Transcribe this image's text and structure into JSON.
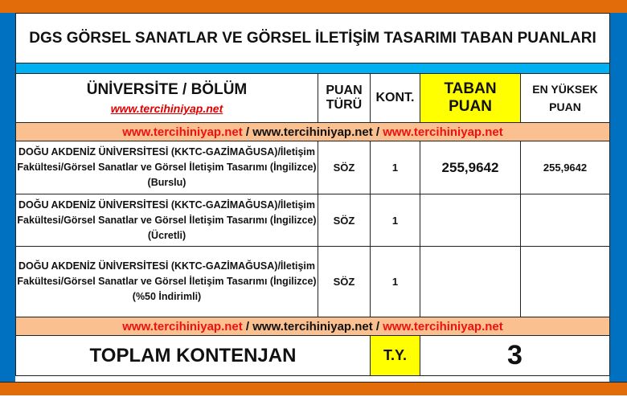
{
  "title": "DGS GÖRSEL SANATLAR VE GÖRSEL İLETİŞİM TASARIMI TABAN PUANLARI",
  "header": {
    "university": "ÜNİVERSİTE / BÖLÜM",
    "site": "www.tercihiniyap.net",
    "puan_turu_1": "PUAN",
    "puan_turu_2": "TÜRÜ",
    "kont": "KONT.",
    "taban_1": "TABAN",
    "taban_2": "PUAN",
    "enyuksek_1": "EN YÜKSEK",
    "enyuksek_2": "PUAN"
  },
  "link_row": {
    "link": "www.tercihiniyap.net",
    "sep": " / "
  },
  "rows": [
    {
      "name": "DOĞU AKDENİZ ÜNİVERSİTESİ (KKTC-GAZİMAĞUSA)/İletişim Fakültesi/Görsel Sanatlar ve Görsel İletişim Tasarımı (İngilizce) (Burslu)",
      "type": "SÖZ",
      "kont": "1",
      "taban": "255,9642",
      "max": "255,9642"
    },
    {
      "name": "DOĞU AKDENİZ ÜNİVERSİTESİ (KKTC-GAZİMAĞUSA)/İletişim Fakültesi/Görsel Sanatlar ve Görsel İletişim Tasarımı (İngilizce) (Ücretli)",
      "type": "SÖZ",
      "kont": "1",
      "taban": "",
      "max": ""
    },
    {
      "name": "DOĞU AKDENİZ ÜNİVERSİTESİ (KKTC-GAZİMAĞUSA)/İletişim Fakültesi/Görsel Sanatlar ve Görsel İletişim Tasarımı (İngilizce) (%50 İndirimli)",
      "type": "SÖZ",
      "kont": "1",
      "taban": "",
      "max": ""
    }
  ],
  "total": {
    "label": "TOPLAM KONTENJAN",
    "ty": "T.Y.",
    "value": "3"
  },
  "colors": {
    "orange": "#e36c0a",
    "blue": "#0070c0",
    "lightblue": "#00b0f0",
    "peach": "#fac090",
    "yellow": "#ffff00",
    "red": "#f01010"
  }
}
